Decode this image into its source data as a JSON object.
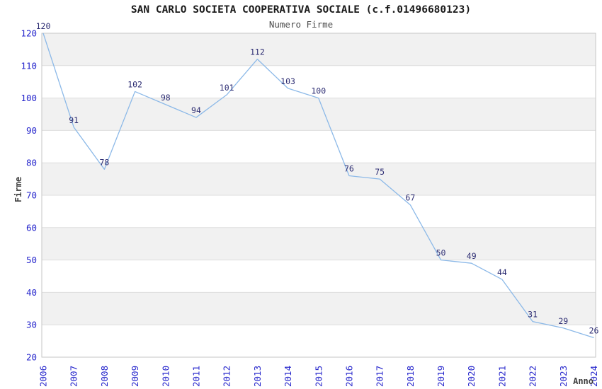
{
  "chart_data": {
    "type": "line",
    "title": "SAN CARLO SOCIETA COOPERATIVA SOCIALE (c.f.01496680123)",
    "subtitle": "Numero Firme",
    "xlabel": "Anno",
    "ylabel": "Firme",
    "categories": [
      "2006",
      "2007",
      "2008",
      "2009",
      "2010",
      "2011",
      "2012",
      "2013",
      "2014",
      "2015",
      "2016",
      "2017",
      "2018",
      "2019",
      "2020",
      "2021",
      "2022",
      "2023",
      "2024"
    ],
    "values": [
      120,
      91,
      78,
      102,
      98,
      94,
      101,
      112,
      103,
      100,
      76,
      75,
      67,
      50,
      49,
      44,
      31,
      29,
      26
    ],
    "ylim": [
      20,
      120
    ],
    "ytick_step": 10,
    "grid": true,
    "bands_alternating": true,
    "legend_position": "none",
    "colors": {
      "line": "#8cb9e8",
      "tick_label": "#2626cc",
      "point_label": "#2d2d73",
      "band": "#f1f1f1",
      "gridline": "#dedede",
      "axis_border": "#c6c6c6",
      "title": "#1a1a1a",
      "subtitle": "#4d4d4d",
      "axis_title": "#3d3d3d",
      "background": "#ffffff"
    }
  }
}
